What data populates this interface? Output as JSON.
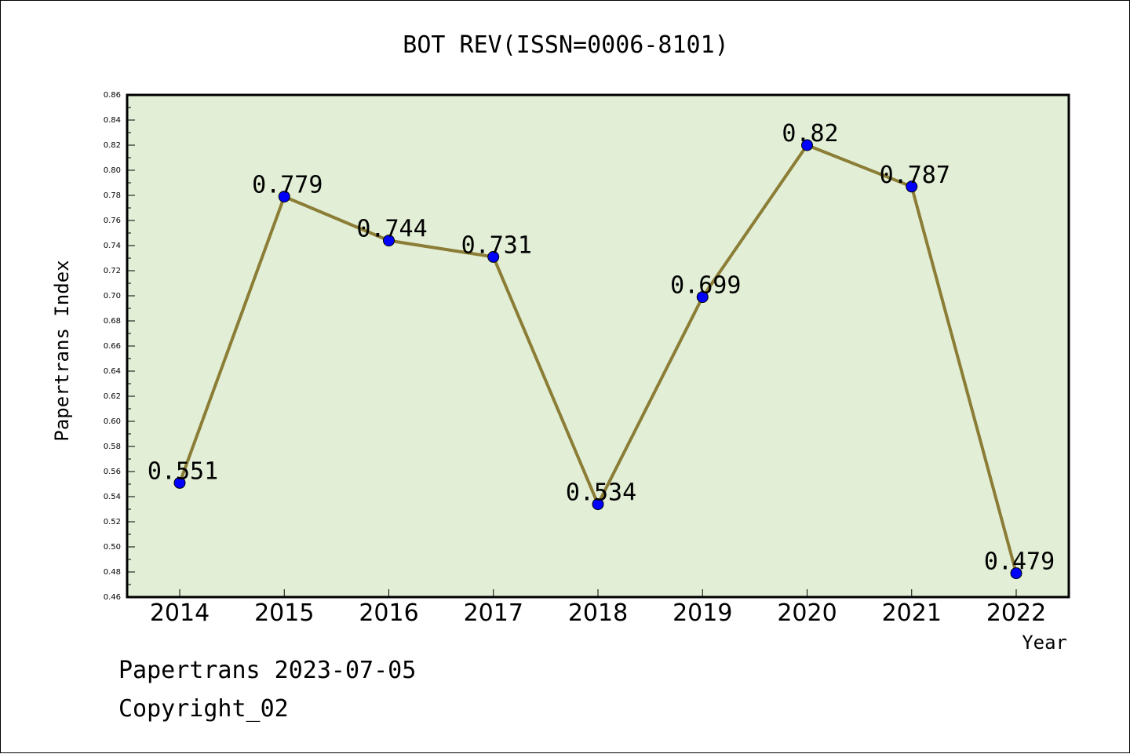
{
  "chart_data": {
    "type": "line",
    "title": "BOT REV(ISSN=0006-8101)",
    "xlabel": "Year",
    "ylabel": "Papertrans Index",
    "categories": [
      "2014",
      "2015",
      "2016",
      "2017",
      "2018",
      "2019",
      "2020",
      "2021",
      "2022"
    ],
    "series": [
      {
        "values": [
          0.551,
          0.779,
          0.744,
          0.731,
          0.534,
          0.699,
          0.82,
          0.787,
          0.479
        ],
        "data_labels": [
          "0.551",
          "0.779",
          "0.744",
          "0.731",
          "0.534",
          "0.699",
          "0.82",
          "0.787",
          "0.479"
        ]
      }
    ],
    "ylim": [
      0.46,
      0.86
    ],
    "yticks": [
      "0.46",
      "0.48",
      "0.50",
      "0.52",
      "0.54",
      "0.56",
      "0.58",
      "0.60",
      "0.62",
      "0.64",
      "0.66",
      "0.68",
      "0.70",
      "0.72",
      "0.74",
      "0.76",
      "0.78",
      "0.80",
      "0.82",
      "0.84",
      "0.86"
    ],
    "grid": false,
    "legend": "none",
    "colors": {
      "plot_background": "#e2efd6",
      "line": "#8b7d36",
      "marker": "#0000ff"
    }
  },
  "footer": {
    "line1": "Papertrans 2023-07-05",
    "line2": "Copyright_02"
  }
}
